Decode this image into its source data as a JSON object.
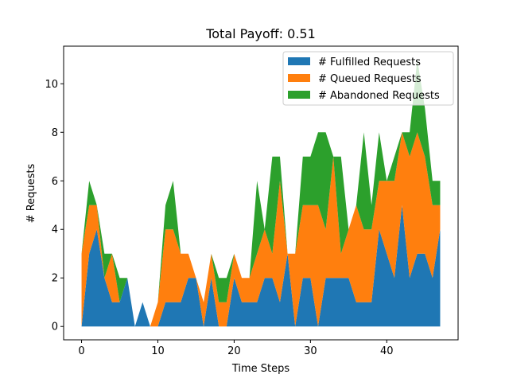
{
  "chart_data": {
    "type": "area",
    "stacked": true,
    "title": "Total Payoff: 0.51",
    "xlabel": "Time Steps",
    "ylabel": "# Requests",
    "xlim": [
      -2.35,
      49.35
    ],
    "ylim": [
      -0.55,
      11.55
    ],
    "xticks": [
      0,
      10,
      20,
      30,
      40
    ],
    "yticks": [
      0,
      2,
      4,
      6,
      8,
      10
    ],
    "grid": false,
    "legend_position": "top-right",
    "x": [
      0,
      1,
      2,
      3,
      4,
      5,
      6,
      7,
      8,
      9,
      10,
      11,
      12,
      13,
      14,
      15,
      16,
      17,
      18,
      19,
      20,
      21,
      22,
      23,
      24,
      25,
      26,
      27,
      28,
      29,
      30,
      31,
      32,
      33,
      34,
      35,
      36,
      37,
      38,
      39,
      40,
      41,
      42,
      43,
      44,
      45,
      46,
      47
    ],
    "series": [
      {
        "name": "# Fulfilled Requests",
        "color": "#1f77b4",
        "values": [
          0,
          3,
          4,
          2,
          1,
          1,
          2,
          0,
          1,
          0,
          0,
          1,
          1,
          1,
          2,
          2,
          0,
          2,
          0,
          0,
          2,
          1,
          1,
          1,
          2,
          2,
          1,
          3,
          0,
          2,
          2,
          0,
          2,
          2,
          2,
          2,
          1,
          1,
          1,
          4,
          3,
          2,
          5,
          2,
          3,
          3,
          2,
          4
        ]
      },
      {
        "name": "# Queued Requests",
        "color": "#ff7f0e",
        "values": [
          3,
          2,
          1,
          0,
          2,
          0,
          0,
          0,
          0,
          0,
          1,
          3,
          3,
          2,
          1,
          0,
          1,
          1,
          1,
          1,
          1,
          1,
          1,
          2,
          2,
          1,
          5,
          0,
          3,
          3,
          3,
          5,
          2,
          5,
          1,
          2,
          4,
          3,
          3,
          2,
          3,
          4,
          3,
          5,
          5,
          4,
          3,
          1
        ]
      },
      {
        "name": "# Abandoned Requests",
        "color": "#2ca02c",
        "values": [
          0,
          1,
          0,
          1,
          0,
          1,
          0,
          0,
          0,
          0,
          0,
          1,
          2,
          0,
          0,
          0,
          0,
          0,
          1,
          1,
          0,
          0,
          0,
          3,
          0,
          4,
          1,
          0,
          0,
          2,
          2,
          3,
          4,
          0,
          4,
          0,
          0,
          4,
          1,
          2,
          0,
          1,
          0,
          1,
          3,
          2,
          1,
          1
        ]
      }
    ]
  }
}
